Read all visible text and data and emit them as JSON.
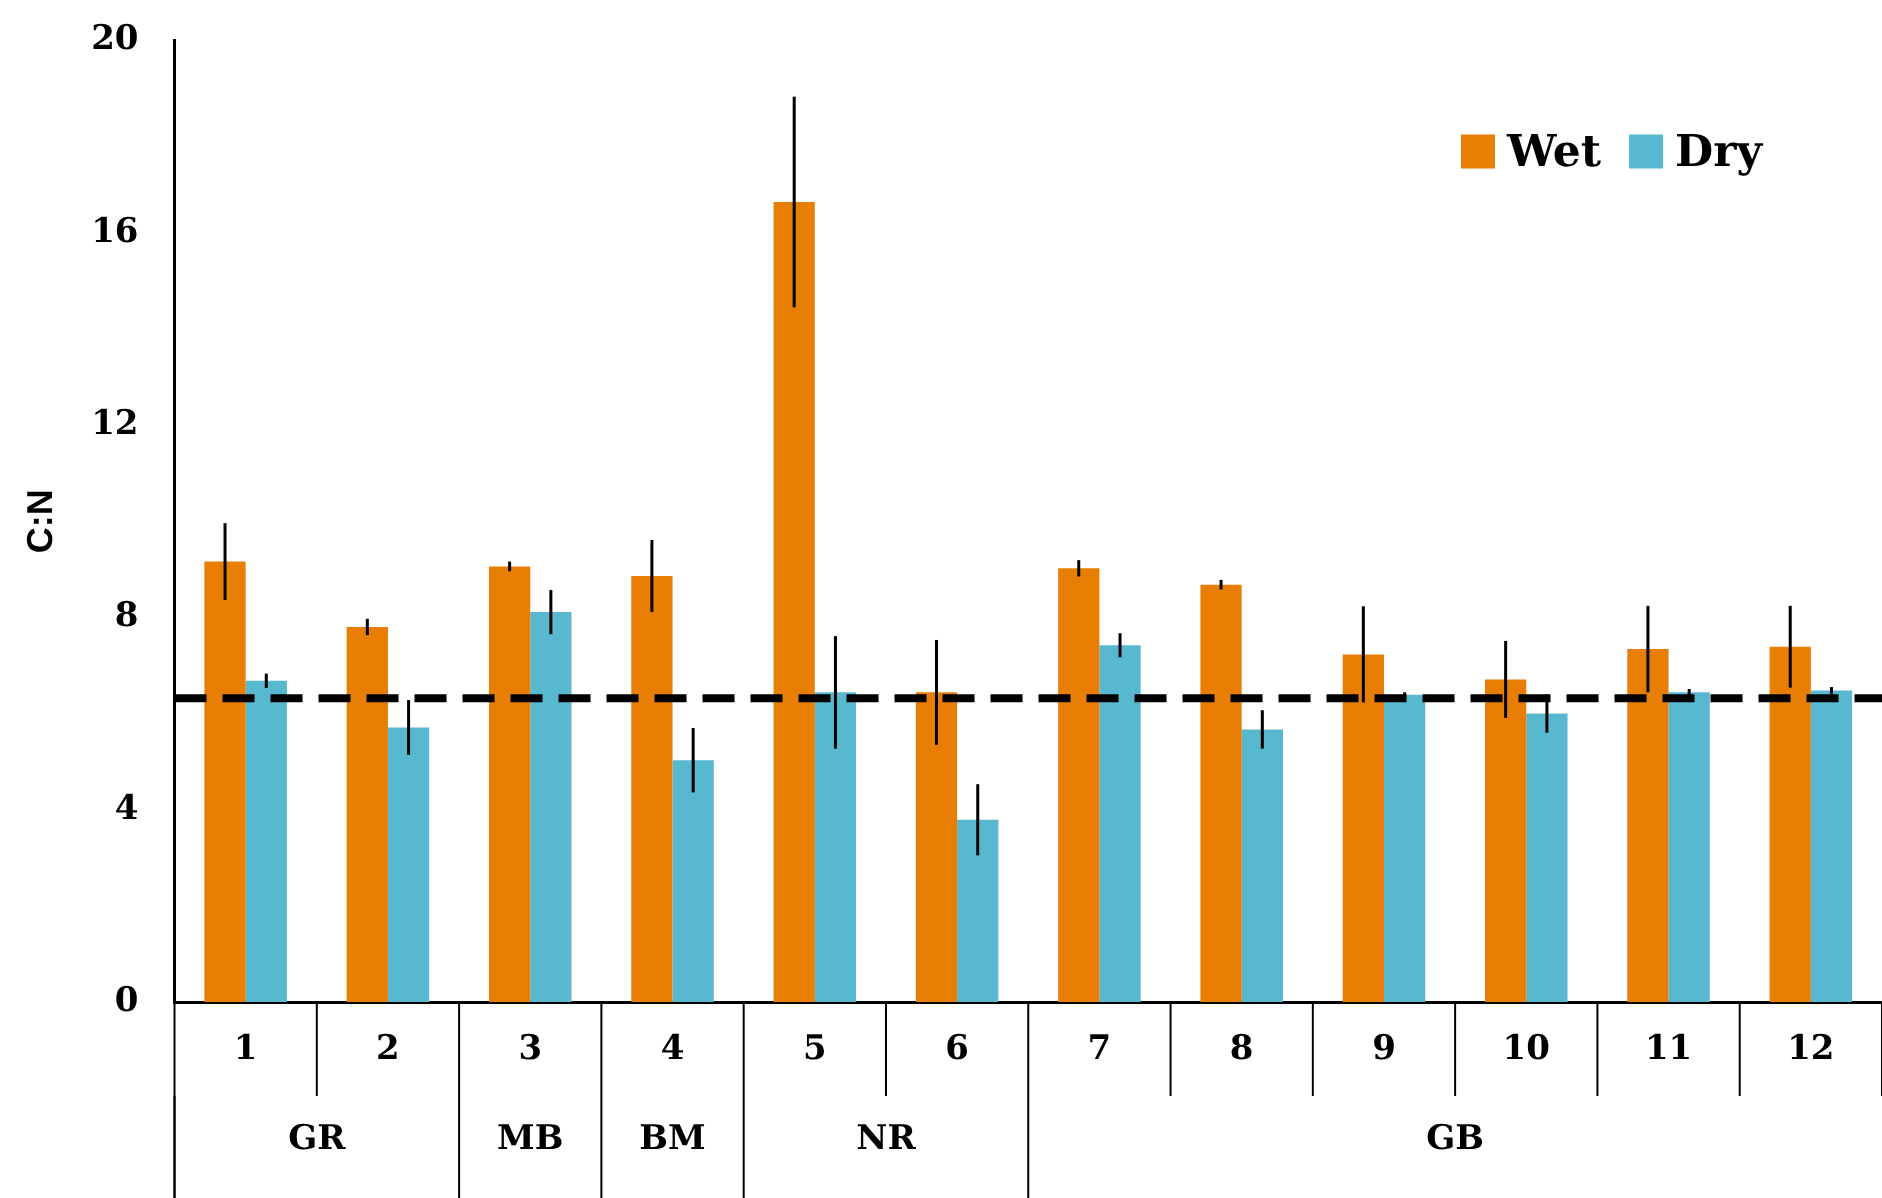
{
  "chart_data": {
    "type": "bar",
    "ylabel": "C:N",
    "categories": [
      "1",
      "2",
      "3",
      "4",
      "5",
      "6",
      "7",
      "8",
      "9",
      "10",
      "11",
      "12"
    ],
    "series": [
      {
        "name": "Wet",
        "color": "#e87e04",
        "values": [
          9.16,
          7.8,
          9.06,
          8.86,
          16.64,
          6.44,
          9.02,
          8.68,
          7.23,
          6.71,
          7.34,
          7.39
        ],
        "errors": [
          0.8,
          0.17,
          0.1,
          0.75,
          2.19,
          1.09,
          0.17,
          0.1,
          1.0,
          0.8,
          0.9,
          0.85
        ]
      },
      {
        "name": "Dry",
        "color": "#58b8d0",
        "values": [
          6.68,
          5.71,
          8.11,
          5.03,
          6.44,
          3.79,
          7.42,
          5.67,
          6.39,
          6.0,
          6.44,
          6.48
        ],
        "errors": [
          0.15,
          0.57,
          0.46,
          0.67,
          1.17,
          0.74,
          0.25,
          0.4,
          0.05,
          0.4,
          0.07,
          0.07
        ]
      }
    ],
    "ylim": [
      0,
      20
    ],
    "yticks": [
      0,
      4,
      8,
      12,
      16,
      20
    ],
    "grid": false,
    "legend": "top right",
    "ref_lines": [
      {
        "axis": "y",
        "value": 6.32,
        "color": "#000000",
        "line_style": "dashed"
      }
    ],
    "annotations": [
      "GR",
      "MB",
      "BM",
      "NR",
      "GB"
    ]
  }
}
